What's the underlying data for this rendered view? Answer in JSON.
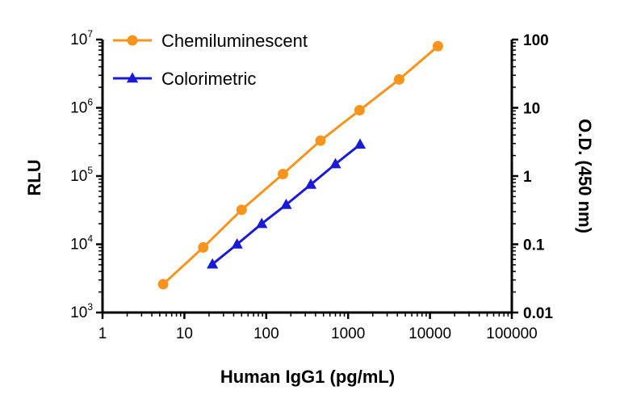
{
  "chart_data": {
    "type": "line",
    "xlabel": "Human IgG1 (pg/mL)",
    "ylabel_left": "RLU",
    "ylabel_right": "O.D. (450 nm)",
    "x_scale": "log",
    "xlim": [
      1,
      100000
    ],
    "x_ticks": [
      "1",
      "10",
      "100",
      "1000",
      "10000",
      "100000"
    ],
    "y_left_scale": "log",
    "y_left_lim": [
      1000,
      10000000
    ],
    "y_left_ticks": [
      {
        "base": "10",
        "exp": "3"
      },
      {
        "base": "10",
        "exp": "4"
      },
      {
        "base": "10",
        "exp": "5"
      },
      {
        "base": "10",
        "exp": "6"
      },
      {
        "base": "10",
        "exp": "7"
      }
    ],
    "y_right_scale": "log",
    "y_right_lim": [
      0.01,
      100
    ],
    "y_right_ticks": [
      "0.01",
      "0.1",
      "1",
      "10",
      "100"
    ],
    "legend_position": "top-left",
    "grid": false,
    "series": [
      {
        "name": "Chemiluminescent",
        "axis": "left",
        "color": "#F7941D",
        "marker": "circle",
        "x": [
          5.5,
          17,
          50,
          160,
          460,
          1380,
          4200,
          12500
        ],
        "y": [
          2600,
          9000,
          32000,
          107000,
          330000,
          920000,
          2600000,
          8000000
        ]
      },
      {
        "name": "Colorimetric",
        "axis": "right",
        "color": "#1A1AD6",
        "marker": "triangle",
        "x": [
          22,
          44,
          88,
          175,
          350,
          700,
          1400
        ],
        "y": [
          0.051,
          0.1,
          0.2,
          0.38,
          0.75,
          1.5,
          2.9
        ]
      }
    ]
  }
}
